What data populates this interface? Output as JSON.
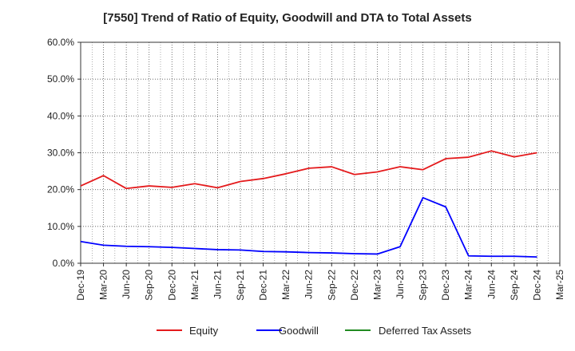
{
  "chart_data": {
    "type": "line",
    "title": "[7550]  Trend of Ratio of Equity, Goodwill and DTA to Total Assets",
    "xlabel": "",
    "ylabel": "",
    "x": [
      "Dec-19",
      "Mar-20",
      "Jun-20",
      "Sep-20",
      "Dec-20",
      "Mar-21",
      "Jun-21",
      "Sep-21",
      "Dec-21",
      "Mar-22",
      "Jun-22",
      "Sep-22",
      "Dec-22",
      "Mar-23",
      "Jun-23",
      "Sep-23",
      "Dec-23",
      "Mar-24",
      "Jun-24",
      "Sep-24",
      "Dec-24",
      "Mar-25"
    ],
    "x_tick_labels": [
      "Dec-19",
      "Mar-20",
      "Jun-20",
      "Sep-20",
      "Dec-20",
      "Mar-21",
      "Jun-21",
      "Sep-21",
      "Dec-21",
      "Mar-22",
      "Jun-22",
      "Sep-22",
      "Dec-22",
      "Mar-23",
      "Jun-23",
      "Sep-23",
      "Dec-23",
      "Mar-24",
      "Jun-24",
      "Sep-24",
      "Dec-24",
      "Mar-25"
    ],
    "y_tick_labels": [
      "0.0%",
      "10.0%",
      "20.0%",
      "30.0%",
      "40.0%",
      "50.0%",
      "60.0%"
    ],
    "y_ticks": [
      0,
      10,
      20,
      30,
      40,
      50,
      60
    ],
    "ylim": [
      0,
      60
    ],
    "grid": true,
    "legend_position": "bottom",
    "series": [
      {
        "name": "Equity",
        "color": "#e41a1c",
        "values": [
          21.0,
          23.8,
          20.3,
          21.0,
          20.6,
          21.6,
          20.5,
          22.2,
          23.0,
          24.3,
          25.8,
          26.2,
          24.1,
          24.8,
          26.2,
          25.4,
          28.4,
          28.8,
          30.5,
          28.9,
          30.0,
          null
        ]
      },
      {
        "name": "Goodwill",
        "color": "#0000ff",
        "values": [
          5.9,
          4.9,
          4.6,
          4.5,
          4.3,
          4.0,
          3.7,
          3.6,
          3.2,
          3.1,
          2.9,
          2.8,
          2.6,
          2.5,
          4.5,
          17.8,
          15.3,
          2.0,
          1.9,
          1.9,
          1.7,
          null
        ]
      },
      {
        "name": "Deferred Tax Assets",
        "color": "#228b22",
        "values": [
          null,
          null,
          null,
          null,
          null,
          null,
          null,
          null,
          null,
          null,
          null,
          null,
          null,
          null,
          null,
          null,
          null,
          null,
          null,
          null,
          null,
          null
        ]
      }
    ]
  }
}
